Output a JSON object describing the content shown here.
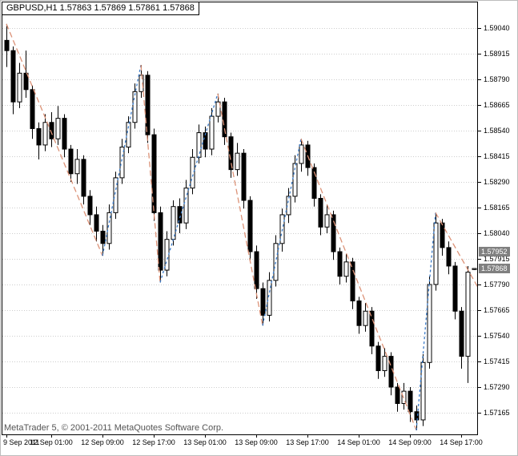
{
  "window": {
    "symbol_header": "GBPUSD,H1  1.57863 1.57869 1.57861 1.57868",
    "copyright": "MetaTrader 5, © 2001-2011 MetaQuotes Software Corp."
  },
  "chart_data": {
    "type": "candlestick",
    "symbol": "GBPUSD",
    "timeframe": "H1",
    "current_ohlc": {
      "open": 1.57863,
      "high": 1.57869,
      "low": 1.57861,
      "close": 1.57868
    },
    "price_axis": {
      "top_price": 1.5904,
      "bottom_price": 1.57165,
      "step": 0.00125,
      "labels": [
        "1.59040",
        "1.58915",
        "1.58790",
        "1.58665",
        "1.58540",
        "1.58415",
        "1.58290",
        "1.58165",
        "1.58040",
        "1.57915",
        "1.57790",
        "1.57665",
        "1.57540",
        "1.57415",
        "1.57290",
        "1.57165"
      ]
    },
    "time_axis": {
      "ticks": [
        {
          "index": 0,
          "label": "9 Sep 2011"
        },
        {
          "index": 7,
          "label": "12 Sep 01:00"
        },
        {
          "index": 15,
          "label": "12 Sep 09:00"
        },
        {
          "index": 23,
          "label": "12 Sep 17:00"
        },
        {
          "index": 31,
          "label": "13 Sep 01:00"
        },
        {
          "index": 39,
          "label": "13 Sep 09:00"
        },
        {
          "index": 47,
          "label": "13 Sep 17:00"
        },
        {
          "index": 55,
          "label": "14 Sep 01:00"
        },
        {
          "index": 63,
          "label": "14 Sep 09:00"
        },
        {
          "index": 71,
          "label": "14 Sep 17:00"
        }
      ]
    },
    "price_tags": [
      {
        "label": "1.57952",
        "price": 1.57952
      },
      {
        "label": "1.57868",
        "price": 1.57868
      }
    ],
    "zigzag": {
      "up_color": "#3b7bc8",
      "down_color": "#dc9277",
      "points": [
        {
          "i": 0,
          "p": 1.5906
        },
        {
          "i": 15,
          "p": 1.5793
        },
        {
          "i": 21,
          "p": 1.5886
        },
        {
          "i": 24,
          "p": 1.578
        },
        {
          "i": 33,
          "p": 1.5872
        },
        {
          "i": 40,
          "p": 1.5759
        },
        {
          "i": 46,
          "p": 1.585
        },
        {
          "i": 64,
          "p": 1.5708
        },
        {
          "i": 67,
          "p": 1.5814
        },
        {
          "i": 75,
          "p": 1.577
        }
      ]
    },
    "candle_format": "open,high,low,close",
    "candles": [
      [
        1.5898,
        1.5906,
        1.5885,
        1.5893
      ],
      [
        1.5893,
        1.5895,
        1.5862,
        1.5868
      ],
      [
        1.5868,
        1.5887,
        1.5865,
        1.5882
      ],
      [
        1.5882,
        1.5893,
        1.587,
        1.5874
      ],
      [
        1.5874,
        1.5876,
        1.585,
        1.5855
      ],
      [
        1.5855,
        1.5858,
        1.584,
        1.5847
      ],
      [
        1.5847,
        1.5862,
        1.5844,
        1.5858
      ],
      [
        1.5858,
        1.5863,
        1.5846,
        1.585
      ],
      [
        1.585,
        1.5866,
        1.5847,
        1.586
      ],
      [
        1.586,
        1.5862,
        1.5841,
        1.5845
      ],
      [
        1.5845,
        1.5847,
        1.5829,
        1.5833
      ],
      [
        1.5833,
        1.5845,
        1.5828,
        1.584
      ],
      [
        1.584,
        1.5842,
        1.5818,
        1.5822
      ],
      [
        1.5822,
        1.5825,
        1.5808,
        1.5813
      ],
      [
        1.5813,
        1.5817,
        1.58,
        1.5805
      ],
      [
        1.5805,
        1.5808,
        1.5793,
        1.5799
      ],
      [
        1.5799,
        1.5818,
        1.5796,
        1.5814
      ],
      [
        1.5814,
        1.5834,
        1.5811,
        1.5831
      ],
      [
        1.5831,
        1.585,
        1.5828,
        1.5846
      ],
      [
        1.5846,
        1.5861,
        1.5843,
        1.5858
      ],
      [
        1.5858,
        1.5877,
        1.5855,
        1.5873
      ],
      [
        1.5873,
        1.5886,
        1.587,
        1.5881
      ],
      [
        1.5881,
        1.5883,
        1.5848,
        1.5852
      ],
      [
        1.5852,
        1.5855,
        1.581,
        1.5814
      ],
      [
        1.5814,
        1.5817,
        1.578,
        1.5786
      ],
      [
        1.5786,
        1.5805,
        1.5783,
        1.5801
      ],
      [
        1.5801,
        1.582,
        1.5798,
        1.5817
      ],
      [
        1.5817,
        1.5821,
        1.5804,
        1.5809
      ],
      [
        1.5809,
        1.583,
        1.5806,
        1.5826
      ],
      [
        1.5826,
        1.5845,
        1.5823,
        1.5841
      ],
      [
        1.5841,
        1.5857,
        1.5838,
        1.5853
      ],
      [
        1.5853,
        1.5856,
        1.5841,
        1.5845
      ],
      [
        1.5845,
        1.5865,
        1.5842,
        1.5861
      ],
      [
        1.5861,
        1.5872,
        1.5858,
        1.5868
      ],
      [
        1.5868,
        1.587,
        1.5847,
        1.5851
      ],
      [
        1.5851,
        1.5853,
        1.5831,
        1.5835
      ],
      [
        1.5835,
        1.5848,
        1.5832,
        1.5843
      ],
      [
        1.5843,
        1.5845,
        1.5816,
        1.582
      ],
      [
        1.582,
        1.5822,
        1.5791,
        1.5795
      ],
      [
        1.5795,
        1.5798,
        1.5772,
        1.5777
      ],
      [
        1.5777,
        1.578,
        1.5759,
        1.5764
      ],
      [
        1.5764,
        1.5785,
        1.5761,
        1.5781
      ],
      [
        1.5781,
        1.5803,
        1.5778,
        1.5799
      ],
      [
        1.5799,
        1.5816,
        1.5795,
        1.5813
      ],
      [
        1.5813,
        1.5826,
        1.5809,
        1.5822
      ],
      [
        1.5822,
        1.5842,
        1.5819,
        1.5838
      ],
      [
        1.5838,
        1.585,
        1.5834,
        1.5847
      ],
      [
        1.5847,
        1.5849,
        1.5832,
        1.5836
      ],
      [
        1.5836,
        1.5838,
        1.5817,
        1.5821
      ],
      [
        1.5821,
        1.5823,
        1.5803,
        1.5807
      ],
      [
        1.5807,
        1.5818,
        1.5804,
        1.5813
      ],
      [
        1.5813,
        1.5815,
        1.5791,
        1.5795
      ],
      [
        1.5795,
        1.5797,
        1.5779,
        1.5783
      ],
      [
        1.5783,
        1.5794,
        1.578,
        1.579
      ],
      [
        1.579,
        1.5792,
        1.5767,
        1.5771
      ],
      [
        1.5771,
        1.5773,
        1.5755,
        1.5759
      ],
      [
        1.5759,
        1.577,
        1.5756,
        1.5766
      ],
      [
        1.5766,
        1.5768,
        1.5745,
        1.5749
      ],
      [
        1.5749,
        1.5751,
        1.5733,
        1.5737
      ],
      [
        1.5737,
        1.5748,
        1.5734,
        1.5744
      ],
      [
        1.5744,
        1.5746,
        1.5725,
        1.5729
      ],
      [
        1.5729,
        1.5731,
        1.5717,
        1.5721
      ],
      [
        1.5721,
        1.5731,
        1.5718,
        1.5727
      ],
      [
        1.5727,
        1.5729,
        1.5712,
        1.5717
      ],
      [
        1.5717,
        1.572,
        1.5708,
        1.5713
      ],
      [
        1.5713,
        1.5745,
        1.571,
        1.5741
      ],
      [
        1.5741,
        1.5783,
        1.5738,
        1.5779
      ],
      [
        1.5779,
        1.5814,
        1.5776,
        1.5809
      ],
      [
        1.5809,
        1.5811,
        1.5793,
        1.5797
      ],
      [
        1.5797,
        1.58,
        1.5784,
        1.5788
      ],
      [
        1.5788,
        1.579,
        1.5762,
        1.5766
      ],
      [
        1.5766,
        1.5768,
        1.5738,
        1.5744
      ],
      [
        1.5744,
        1.5788,
        1.5731,
        1.5785
      ],
      [
        1.57863,
        1.57869,
        1.57861,
        1.57868
      ]
    ],
    "colors": {
      "grid": "#cdcdcd",
      "outline": "#000000",
      "up_fill": "#ffffff",
      "down_fill": "#000000",
      "scale_tag_bg": "#808080",
      "scale_tag_text": "#ffffff"
    }
  }
}
